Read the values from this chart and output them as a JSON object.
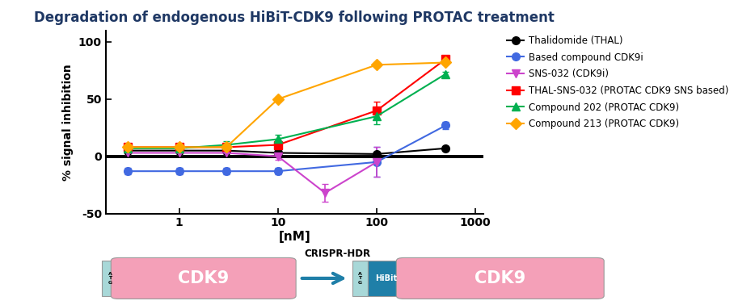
{
  "title": "Degradation of endogenous HiBiT-CDK9 following PROTAC treatment",
  "title_color": "#1F3864",
  "xlabel": "[nM]",
  "ylabel": "% signal inhibition",
  "ylim": [
    -50,
    110
  ],
  "yticks": [
    -50,
    0,
    50,
    100
  ],
  "series": [
    {
      "name": "Thalidomide (THAL)",
      "color": "#000000",
      "marker": "o",
      "markersize": 7,
      "linewidth": 1.5,
      "x": [
        0.3,
        1,
        3,
        10,
        100,
        500
      ],
      "y": [
        5,
        5,
        5,
        3,
        2,
        7
      ],
      "yerr": [
        1,
        1,
        1,
        1,
        1,
        1
      ]
    },
    {
      "name": "Based compound CDK9i",
      "color": "#4169E1",
      "marker": "o",
      "markersize": 7,
      "linewidth": 1.5,
      "x": [
        0.3,
        1,
        3,
        10,
        100,
        500
      ],
      "y": [
        -13,
        -13,
        -13,
        -13,
        -5,
        27
      ],
      "yerr": [
        3,
        3,
        3,
        3,
        13,
        3
      ]
    },
    {
      "name": "SNS-032 (CDK9i)",
      "color": "#CC44CC",
      "marker": "v",
      "markersize": 7,
      "linewidth": 1.5,
      "x": [
        0.3,
        1,
        3,
        10,
        30,
        100
      ],
      "y": [
        3,
        3,
        3,
        0,
        -32,
        -5
      ],
      "yerr": [
        1,
        1,
        1,
        3,
        8,
        13
      ]
    },
    {
      "name": "THAL-SNS-032 (PROTAC CDK9 SNS based)",
      "color": "#FF0000",
      "marker": "s",
      "markersize": 7,
      "linewidth": 1.5,
      "x": [
        0.3,
        1,
        3,
        10,
        100,
        500
      ],
      "y": [
        8,
        8,
        8,
        10,
        40,
        85
      ],
      "yerr": [
        2,
        2,
        2,
        4,
        8,
        3
      ]
    },
    {
      "name": "Compound 202 (PROTAC CDK9)",
      "color": "#00B050",
      "marker": "^",
      "markersize": 7,
      "linewidth": 1.5,
      "x": [
        0.3,
        1,
        3,
        10,
        100,
        500
      ],
      "y": [
        7,
        7,
        10,
        15,
        35,
        72
      ],
      "yerr": [
        2,
        2,
        3,
        4,
        7,
        2
      ]
    },
    {
      "name": "Compound 213 (PROTAC CDK9)",
      "color": "#FFA500",
      "marker": "D",
      "markersize": 7,
      "linewidth": 1.5,
      "x": [
        0.3,
        1,
        3,
        10,
        100,
        500
      ],
      "y": [
        8,
        8,
        8,
        50,
        80,
        82
      ],
      "yerr": [
        2,
        2,
        2,
        2,
        2,
        2
      ]
    }
  ]
}
